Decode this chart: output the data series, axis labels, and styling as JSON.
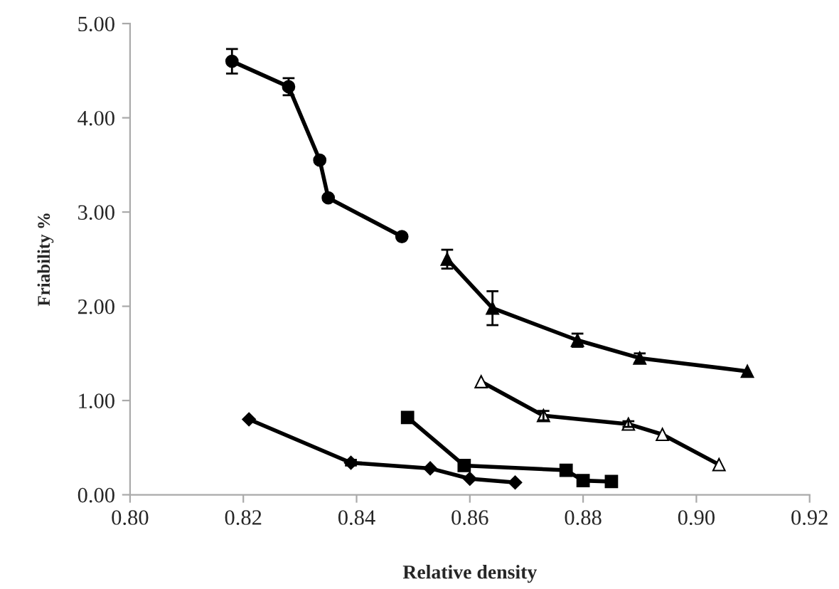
{
  "chart_data": {
    "type": "line",
    "xlabel": "Relative density",
    "ylabel": "Friability %",
    "xlim": [
      0.8,
      0.92
    ],
    "ylim": [
      0,
      5
    ],
    "xticks": [
      {
        "value": 0.8,
        "label": "0.80"
      },
      {
        "value": 0.82,
        "label": "0.82"
      },
      {
        "value": 0.84,
        "label": "0.84"
      },
      {
        "value": 0.86,
        "label": "0.86"
      },
      {
        "value": 0.88,
        "label": "0.88"
      },
      {
        "value": 0.9,
        "label": "0.90"
      },
      {
        "value": 0.92,
        "label": "0.92"
      }
    ],
    "yticks": [
      {
        "value": 0,
        "label": "0.00"
      },
      {
        "value": 1,
        "label": "1.00"
      },
      {
        "value": 2,
        "label": "2.00"
      },
      {
        "value": 3,
        "label": "3.00"
      },
      {
        "value": 4,
        "label": "4.00"
      },
      {
        "value": 5,
        "label": "5.00"
      }
    ],
    "grid": false,
    "legend": false,
    "line_style": "solid",
    "series": [
      {
        "color": "#000000",
        "marker": "circle",
        "x": [
          0.818,
          0.828,
          0.8335,
          0.835,
          0.848
        ],
        "values": [
          4.6,
          4.33,
          3.55,
          3.15,
          2.74
        ],
        "errors": [
          0.13,
          0.09,
          null,
          null,
          null
        ]
      },
      {
        "color": "#000000",
        "marker": "triangle",
        "x": [
          0.856,
          0.864,
          0.879,
          0.89,
          0.909
        ],
        "values": [
          2.5,
          1.98,
          1.64,
          1.45,
          1.31
        ],
        "errors": [
          0.1,
          0.18,
          0.07,
          0.05,
          null
        ]
      },
      {
        "color": "#000000",
        "marker": "triangle_open",
        "x": [
          0.862,
          0.873,
          0.888,
          0.894,
          0.904
        ],
        "values": [
          1.2,
          0.84,
          0.75,
          0.64,
          0.32
        ],
        "errors": [
          null,
          0.05,
          0.03,
          null,
          null
        ]
      },
      {
        "color": "#000000",
        "marker": "square",
        "x": [
          0.849,
          0.859,
          0.877,
          0.88,
          0.885
        ],
        "values": [
          0.82,
          0.31,
          0.26,
          0.15,
          0.14
        ]
      },
      {
        "color": "#000000",
        "marker": "diamond",
        "x": [
          0.821,
          0.839,
          0.853,
          0.86,
          0.868
        ],
        "values": [
          0.8,
          0.34,
          0.28,
          0.17,
          0.13
        ],
        "errors": [
          null,
          0.03,
          null,
          null,
          null
        ]
      }
    ]
  }
}
